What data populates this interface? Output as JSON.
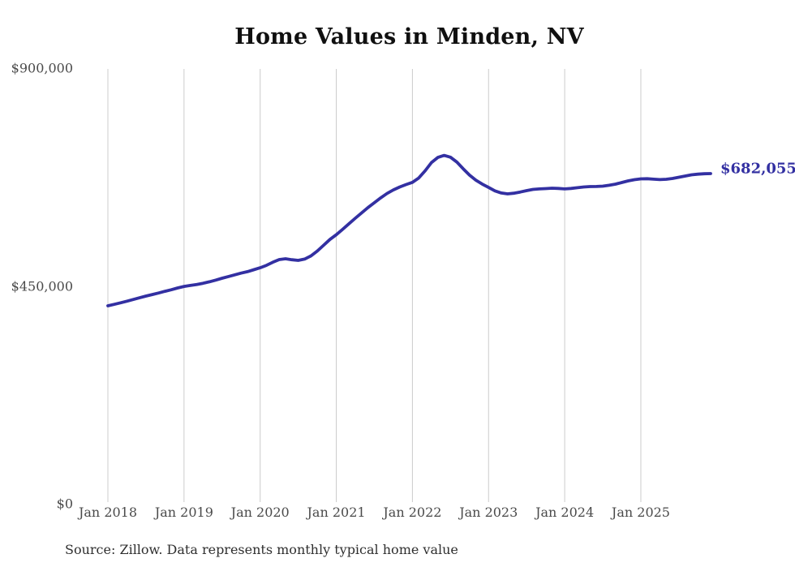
{
  "page": {
    "background": "#ffffff"
  },
  "colors": {
    "line": "#3330a2",
    "grid": "#cccccc",
    "axis_text": "#4a4a4a",
    "title_text": "#101010",
    "source_text": "#2f2f2f"
  },
  "chart_data": {
    "type": "line",
    "title": "Home Values in Minden, NV",
    "xlabel": "",
    "ylabel": "",
    "ylim": [
      0,
      900000
    ],
    "grid": "vertical-yearly-only",
    "legend": "none",
    "x_start_month": "2018-01",
    "x_frequency": "monthly",
    "series": [
      {
        "name": "Monthly typical home value (USD)",
        "color": "#3330a2",
        "values": [
          409000,
          412000,
          415200,
          418500,
          422000,
          425500,
          429000,
          432200,
          435500,
          439000,
          442200,
          445800,
          449000,
          451000,
          453000,
          455500,
          458500,
          462000,
          466000,
          469500,
          473000,
          476500,
          479500,
          483500,
          487500,
          492500,
          499000,
          504500,
          506200,
          504200,
          502800,
          505500,
          512000,
          522000,
          534000,
          546000,
          556000,
          567000,
          578500,
          590000,
          601000,
          612000,
          622000,
          632000,
          641000,
          648500,
          654500,
          659500,
          664000,
          673000,
          688000,
          705000,
          715500,
          719600,
          716000,
          706000,
          692000,
          679000,
          668500,
          660500,
          653500,
          646500,
          642000,
          640300,
          641500,
          644000,
          647000,
          649500,
          650500,
          651200,
          652000,
          651500,
          650500,
          651500,
          653000,
          654500,
          655300,
          655500,
          656200,
          658000,
          660400,
          663700,
          667000,
          669600,
          671300,
          671500,
          670500,
          669800,
          670400,
          672100,
          674600,
          677100,
          679600,
          681000,
          681800,
          682055
        ]
      }
    ],
    "x_ticks": [
      {
        "label": "Jan 2018",
        "month_index": 0
      },
      {
        "label": "Jan 2019",
        "month_index": 12
      },
      {
        "label": "Jan 2020",
        "month_index": 24
      },
      {
        "label": "Jan 2021",
        "month_index": 36
      },
      {
        "label": "Jan 2022",
        "month_index": 48
      },
      {
        "label": "Jan 2023",
        "month_index": 60
      },
      {
        "label": "Jan 2024",
        "month_index": 72
      },
      {
        "label": "Jan 2025",
        "month_index": 84
      }
    ],
    "y_ticks": [
      {
        "label": "$0",
        "value": 0
      },
      {
        "label": "$450,000",
        "value": 450000
      },
      {
        "label": "$900,000",
        "value": 900000
      }
    ],
    "end_label": "$682,055",
    "end_value": 682055,
    "source": "Source: Zillow. Data represents monthly typical home value"
  }
}
